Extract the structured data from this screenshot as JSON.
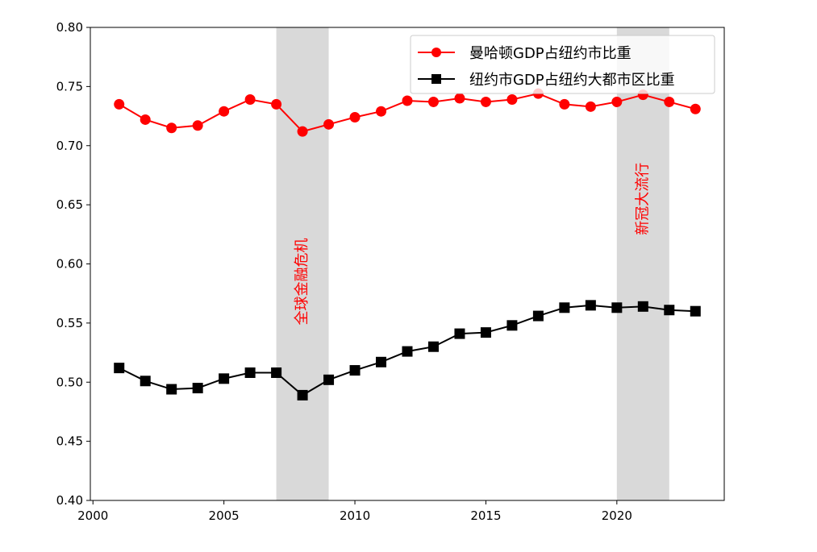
{
  "chart_data": {
    "type": "line",
    "title": "",
    "xlabel": "",
    "ylabel": "",
    "xlim": [
      1999.9,
      2024.1
    ],
    "ylim": [
      0.4,
      0.8
    ],
    "x_ticks": [
      2000,
      2005,
      2010,
      2015,
      2020
    ],
    "x_tick_labels": [
      "2000",
      "2005",
      "2010",
      "2015",
      "2020"
    ],
    "y_ticks": [
      0.4,
      0.45,
      0.5,
      0.55,
      0.6,
      0.65,
      0.7,
      0.75,
      0.8
    ],
    "y_tick_labels": [
      "0.40",
      "0.45",
      "0.50",
      "0.55",
      "0.60",
      "0.65",
      "0.70",
      "0.75",
      "0.80"
    ],
    "x": [
      2001,
      2002,
      2003,
      2004,
      2005,
      2006,
      2007,
      2008,
      2009,
      2010,
      2011,
      2012,
      2013,
      2014,
      2015,
      2016,
      2017,
      2018,
      2019,
      2020,
      2021,
      2022,
      2023
    ],
    "series": [
      {
        "name": "曼哈顿GDP占纽约市比重",
        "color": "#ff0000",
        "marker": "circle",
        "values": [
          0.735,
          0.722,
          0.715,
          0.717,
          0.729,
          0.739,
          0.735,
          0.712,
          0.718,
          0.724,
          0.729,
          0.738,
          0.737,
          0.74,
          0.737,
          0.739,
          0.744,
          0.735,
          0.733,
          0.737,
          0.743,
          0.737,
          0.731
        ]
      },
      {
        "name": "纽约市GDP占纽约大都市区比重",
        "color": "#000000",
        "marker": "square",
        "values": [
          0.512,
          0.501,
          0.494,
          0.495,
          0.503,
          0.508,
          0.508,
          0.489,
          0.502,
          0.51,
          0.517,
          0.526,
          0.53,
          0.541,
          0.542,
          0.548,
          0.556,
          0.563,
          0.565,
          0.563,
          0.564,
          0.561,
          0.56
        ]
      }
    ],
    "shaded_regions": [
      {
        "from": 2007,
        "to": 2009,
        "label": "全球金融危机",
        "label_y": 0.585
      },
      {
        "from": 2020,
        "to": 2022,
        "label": "新冠大流行",
        "label_y": 0.655
      }
    ],
    "shade_color": "#d9d9d9",
    "annotation_color": "#ff0000",
    "legend_position": "top-right",
    "grid": false
  }
}
